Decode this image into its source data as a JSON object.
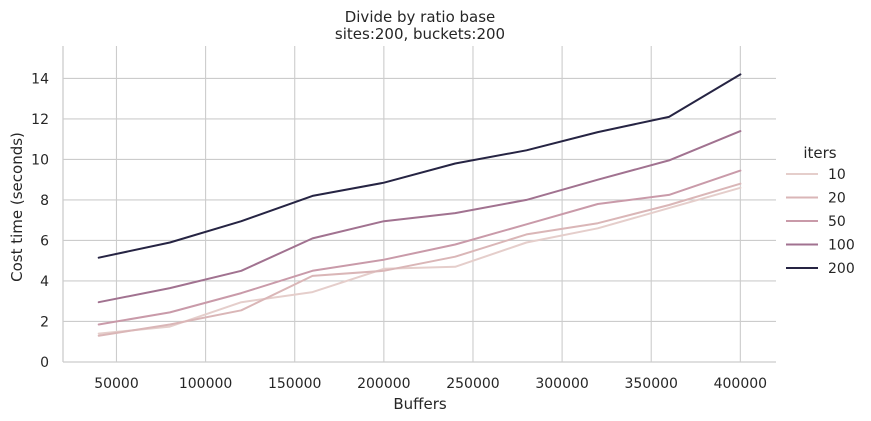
{
  "chart_data": {
    "type": "line",
    "title": "Divide by ratio base",
    "subtitle": "sites:200, buckets:200",
    "xlabel": "Buffers",
    "ylabel": "Cost time (seconds)",
    "xlim": [
      20000,
      420000
    ],
    "ylim": [
      0,
      15.6
    ],
    "xticks": [
      50000,
      100000,
      150000,
      200000,
      250000,
      300000,
      350000,
      400000
    ],
    "yticks": [
      0,
      2,
      4,
      6,
      8,
      10,
      12,
      14
    ],
    "grid": true,
    "legend": {
      "title": "iters",
      "placement": "right"
    },
    "x": [
      40000,
      80000,
      120000,
      160000,
      200000,
      240000,
      280000,
      320000,
      360000,
      400000
    ],
    "series": [
      {
        "name": "10",
        "color": "#e5cecb",
        "values": [
          1.4,
          1.75,
          2.95,
          3.45,
          4.6,
          4.7,
          5.9,
          6.6,
          7.6,
          8.6
        ]
      },
      {
        "name": "20",
        "color": "#dab6b7",
        "values": [
          1.3,
          1.85,
          2.55,
          4.25,
          4.5,
          5.2,
          6.3,
          6.85,
          7.75,
          8.8
        ]
      },
      {
        "name": "50",
        "color": "#c99aa9",
        "values": [
          1.85,
          2.45,
          3.4,
          4.5,
          5.05,
          5.8,
          6.8,
          7.8,
          8.25,
          9.45
        ]
      },
      {
        "name": "100",
        "color": "#a17290",
        "values": [
          2.95,
          3.65,
          4.5,
          6.1,
          6.95,
          7.35,
          8.0,
          9.0,
          9.95,
          11.4
        ]
      },
      {
        "name": "200",
        "color": "#262443",
        "values": [
          5.15,
          5.9,
          6.95,
          8.2,
          8.85,
          9.8,
          10.45,
          11.35,
          12.1,
          14.2
        ]
      }
    ]
  }
}
